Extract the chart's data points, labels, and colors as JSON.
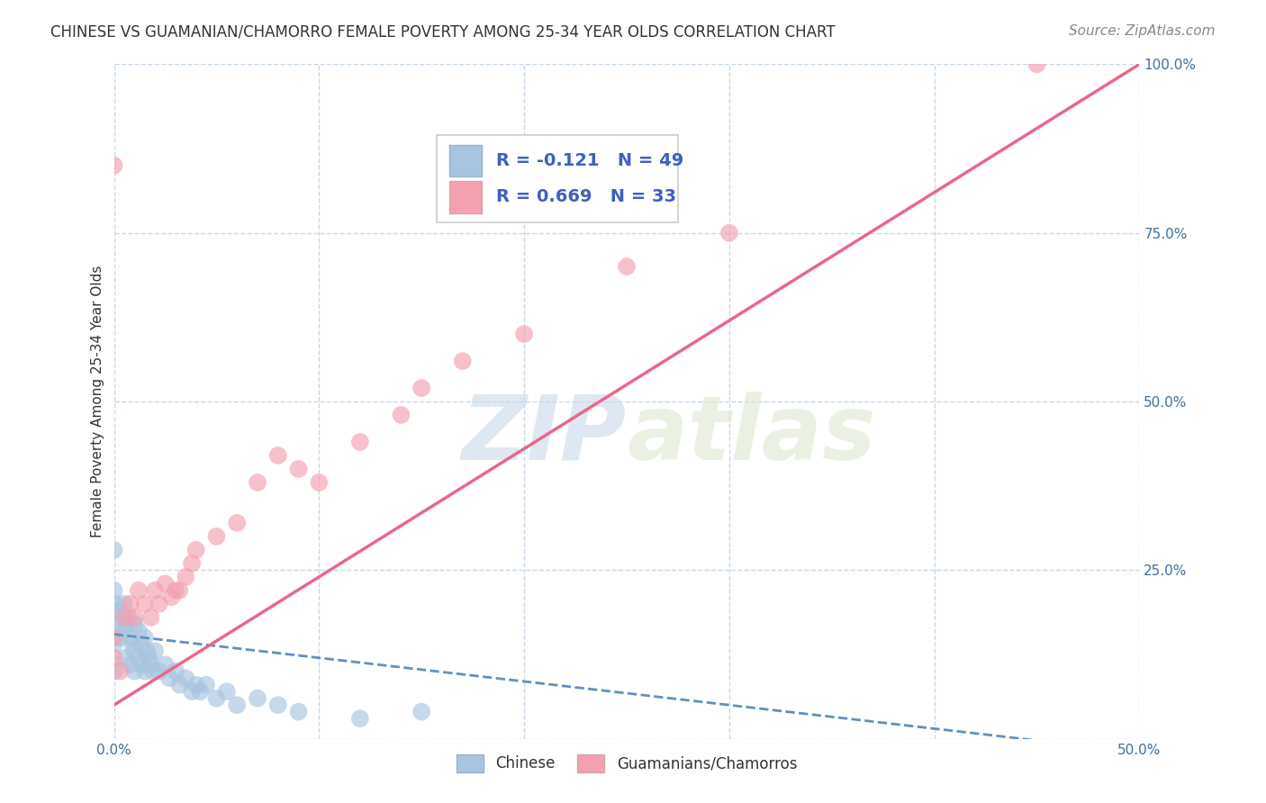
{
  "title": "CHINESE VS GUAMANIAN/CHAMORRO FEMALE POVERTY AMONG 25-34 YEAR OLDS CORRELATION CHART",
  "source": "Source: ZipAtlas.com",
  "ylabel": "Female Poverty Among 25-34 Year Olds",
  "xlim": [
    0.0,
    0.5
  ],
  "ylim": [
    0.0,
    1.0
  ],
  "xticks": [
    0.0,
    0.1,
    0.2,
    0.3,
    0.4,
    0.5
  ],
  "xtick_labels": [
    "0.0%",
    "",
    "",
    "",
    "",
    "50.0%"
  ],
  "yticks": [
    0.0,
    0.25,
    0.5,
    0.75,
    1.0
  ],
  "ytick_labels_right": [
    "",
    "25.0%",
    "50.0%",
    "75.0%",
    "100.0%"
  ],
  "chinese_color": "#a8c4e0",
  "guamanian_color": "#f4a0b0",
  "legend_R1": "R = -0.121",
  "legend_N1": "N = 49",
  "legend_R2": "R = 0.669",
  "legend_N2": "N = 33",
  "legend_label1": "Chinese",
  "legend_label2": "Guamanians/Chamorros",
  "watermark_zip": "ZIP",
  "watermark_atlas": "atlas",
  "background_color": "#ffffff",
  "grid_color": "#c8d8e8",
  "chinese_line_color": "#6090c0",
  "guamanian_line_color": "#e8688a",
  "chinese_scatter_x": [
    0.0,
    0.0,
    0.0,
    0.0,
    0.0,
    0.001,
    0.002,
    0.003,
    0.003,
    0.004,
    0.005,
    0.005,
    0.006,
    0.007,
    0.008,
    0.008,
    0.009,
    0.01,
    0.01,
    0.01,
    0.012,
    0.012,
    0.013,
    0.014,
    0.015,
    0.015,
    0.016,
    0.017,
    0.018,
    0.019,
    0.02,
    0.022,
    0.025,
    0.027,
    0.03,
    0.032,
    0.035,
    0.038,
    0.04,
    0.042,
    0.045,
    0.05,
    0.055,
    0.06,
    0.07,
    0.08,
    0.09,
    0.12,
    0.15
  ],
  "chinese_scatter_y": [
    0.28,
    0.22,
    0.18,
    0.14,
    0.1,
    0.2,
    0.17,
    0.19,
    0.15,
    0.16,
    0.2,
    0.12,
    0.17,
    0.18,
    0.15,
    0.11,
    0.14,
    0.17,
    0.13,
    0.1,
    0.16,
    0.12,
    0.14,
    0.11,
    0.15,
    0.1,
    0.13,
    0.12,
    0.11,
    0.1,
    0.13,
    0.1,
    0.11,
    0.09,
    0.1,
    0.08,
    0.09,
    0.07,
    0.08,
    0.07,
    0.08,
    0.06,
    0.07,
    0.05,
    0.06,
    0.05,
    0.04,
    0.03,
    0.04
  ],
  "guamanian_scatter_x": [
    0.0,
    0.0,
    0.0,
    0.003,
    0.005,
    0.008,
    0.01,
    0.012,
    0.015,
    0.018,
    0.02,
    0.022,
    0.025,
    0.028,
    0.03,
    0.032,
    0.035,
    0.038,
    0.04,
    0.05,
    0.06,
    0.07,
    0.08,
    0.09,
    0.1,
    0.12,
    0.14,
    0.15,
    0.17,
    0.2,
    0.25,
    0.3,
    0.45
  ],
  "guamanian_scatter_y": [
    0.15,
    0.12,
    0.85,
    0.1,
    0.18,
    0.2,
    0.18,
    0.22,
    0.2,
    0.18,
    0.22,
    0.2,
    0.23,
    0.21,
    0.22,
    0.22,
    0.24,
    0.26,
    0.28,
    0.3,
    0.32,
    0.38,
    0.42,
    0.4,
    0.38,
    0.44,
    0.48,
    0.52,
    0.56,
    0.6,
    0.7,
    0.75,
    1.0
  ],
  "title_fontsize": 12,
  "axis_label_fontsize": 11,
  "tick_fontsize": 11,
  "legend_fontsize": 13,
  "source_fontsize": 11,
  "chinese_line_x": [
    0.0,
    0.5
  ],
  "chinese_line_y": [
    0.155,
    -0.02
  ],
  "guamanian_line_x": [
    0.0,
    0.5
  ],
  "guamanian_line_y": [
    0.05,
    1.0
  ]
}
